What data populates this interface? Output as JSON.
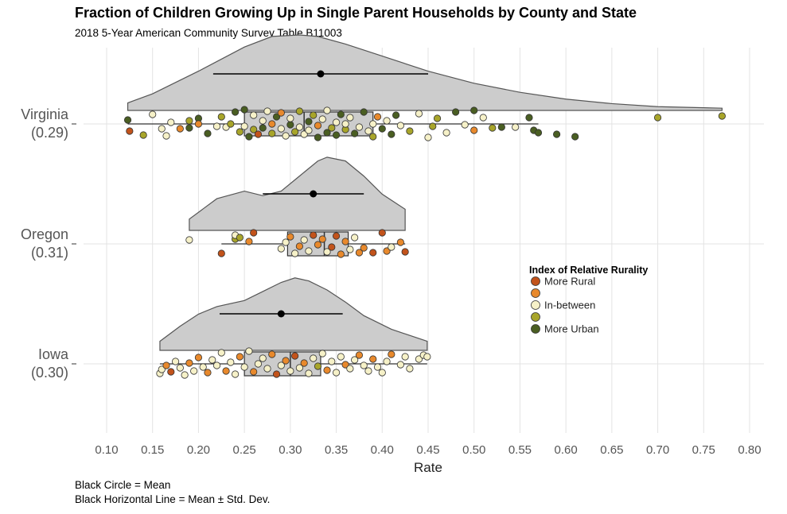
{
  "title": "Fraction of Children Growing Up in Single Parent Households by County and State",
  "subtitle": "2018 5-Year American Community Survey Table B11003",
  "caption": [
    "Black Circle = Mean",
    "Black Horizontal Line = Mean ± Std. Dev."
  ],
  "colors": {
    "more_rural": "#c2531b",
    "rural_mid": "#e8892c",
    "in_between": "#f6f1c8",
    "urban_mid": "#a8a52a",
    "more_urban": "#4a5e22",
    "density_fill": "#cccccc",
    "density_stroke": "#555555",
    "grid": "#e3e3e3"
  },
  "chart_data": {
    "type": "raincloud",
    "title": "Fraction of Children Growing Up in Single Parent Households by County and State",
    "subtitle": "2018 5-Year American Community Survey Table B11003",
    "xlabel": "Rate",
    "ylabel": "",
    "xlim": [
      0.1,
      0.8
    ],
    "xticks": [
      "0.10",
      "0.15",
      "0.20",
      "0.25",
      "0.30",
      "0.35",
      "0.40",
      "0.45",
      "0.50",
      "0.55",
      "0.60",
      "0.65",
      "0.70",
      "0.75",
      "0.80"
    ],
    "grid": true,
    "legend": {
      "title": "Index of Relative Rurality",
      "position": "right",
      "entries": [
        "More Rural",
        "",
        "In-between",
        "",
        "More Urban"
      ]
    },
    "series": [
      {
        "name": "Virginia",
        "label": [
          "Virginia",
          "(0.29)"
        ],
        "mean": 0.333,
        "sd": 0.117,
        "box": {
          "min": 0.123,
          "q1": 0.25,
          "median": 0.315,
          "q3": 0.39,
          "max": 0.57
        },
        "density": [
          [
            0.123,
            0.1
          ],
          [
            0.15,
            0.22
          ],
          [
            0.2,
            0.52
          ],
          [
            0.25,
            0.84
          ],
          [
            0.28,
            0.98
          ],
          [
            0.31,
            1.0
          ],
          [
            0.33,
            0.98
          ],
          [
            0.36,
            0.88
          ],
          [
            0.4,
            0.72
          ],
          [
            0.45,
            0.52
          ],
          [
            0.5,
            0.36
          ],
          [
            0.55,
            0.24
          ],
          [
            0.6,
            0.15
          ],
          [
            0.65,
            0.09
          ],
          [
            0.7,
            0.05
          ],
          [
            0.77,
            0.03
          ]
        ],
        "points": [
          [
            0.125,
            0.45,
            0
          ],
          [
            0.123,
            -0.25,
            4
          ],
          [
            0.14,
            0.7,
            3
          ],
          [
            0.15,
            -0.6,
            2
          ],
          [
            0.16,
            0.3,
            2
          ],
          [
            0.165,
            0.75,
            2
          ],
          [
            0.17,
            -0.1,
            2
          ],
          [
            0.18,
            0.3,
            1
          ],
          [
            0.19,
            -0.2,
            3
          ],
          [
            0.19,
            0.25,
            4
          ],
          [
            0.2,
            -0.35,
            4
          ],
          [
            0.2,
            0.0,
            1
          ],
          [
            0.21,
            0.6,
            4
          ],
          [
            0.22,
            0.15,
            2
          ],
          [
            0.225,
            -0.45,
            3
          ],
          [
            0.23,
            0.2,
            2
          ],
          [
            0.235,
            0.0,
            3
          ],
          [
            0.24,
            -0.75,
            4
          ],
          [
            0.245,
            0.5,
            3
          ],
          [
            0.25,
            -0.9,
            4
          ],
          [
            0.25,
            0.15,
            2
          ],
          [
            0.255,
            0.8,
            4
          ],
          [
            0.26,
            -0.55,
            2
          ],
          [
            0.26,
            0.35,
            3
          ],
          [
            0.265,
            0.65,
            0
          ],
          [
            0.27,
            -0.2,
            2
          ],
          [
            0.27,
            0.25,
            4
          ],
          [
            0.275,
            -0.8,
            2
          ],
          [
            0.28,
            0.0,
            1
          ],
          [
            0.28,
            0.6,
            3
          ],
          [
            0.285,
            -0.45,
            4
          ],
          [
            0.29,
            0.3,
            2
          ],
          [
            0.29,
            -0.7,
            1
          ],
          [
            0.295,
            0.75,
            2
          ],
          [
            0.3,
            0.05,
            4
          ],
          [
            0.3,
            -0.35,
            2
          ],
          [
            0.305,
            0.5,
            3
          ],
          [
            0.31,
            -0.8,
            3
          ],
          [
            0.31,
            0.2,
            2
          ],
          [
            0.315,
            0.65,
            2
          ],
          [
            0.32,
            -0.15,
            4
          ],
          [
            0.32,
            0.4,
            2
          ],
          [
            0.325,
            -0.55,
            3
          ],
          [
            0.33,
            0.85,
            4
          ],
          [
            0.33,
            0.1,
            1
          ],
          [
            0.335,
            -0.3,
            2
          ],
          [
            0.34,
            0.55,
            4
          ],
          [
            0.34,
            -0.85,
            2
          ],
          [
            0.345,
            0.25,
            3
          ],
          [
            0.35,
            0.7,
            4
          ],
          [
            0.35,
            -0.1,
            2
          ],
          [
            0.355,
            -0.6,
            4
          ],
          [
            0.36,
            0.35,
            3
          ],
          [
            0.36,
            0.0,
            2
          ],
          [
            0.365,
            -0.4,
            2
          ],
          [
            0.37,
            0.6,
            4
          ],
          [
            0.375,
            0.2,
            2
          ],
          [
            0.38,
            -0.75,
            4
          ],
          [
            0.385,
            0.45,
            2
          ],
          [
            0.39,
            0.0,
            2
          ],
          [
            0.39,
            0.8,
            3
          ],
          [
            0.395,
            -0.45,
            1
          ],
          [
            0.4,
            0.3,
            4
          ],
          [
            0.405,
            -0.2,
            2
          ],
          [
            0.41,
            0.65,
            4
          ],
          [
            0.415,
            -0.55,
            4
          ],
          [
            0.42,
            0.1,
            2
          ],
          [
            0.43,
            0.45,
            3
          ],
          [
            0.44,
            -0.65,
            2
          ],
          [
            0.45,
            0.85,
            2
          ],
          [
            0.455,
            0.15,
            3
          ],
          [
            0.46,
            -0.35,
            3
          ],
          [
            0.47,
            0.55,
            2
          ],
          [
            0.48,
            -0.75,
            4
          ],
          [
            0.49,
            0.05,
            2
          ],
          [
            0.5,
            0.4,
            1
          ],
          [
            0.51,
            -0.4,
            2
          ],
          [
            0.52,
            0.25,
            3
          ],
          [
            0.53,
            0.2,
            4
          ],
          [
            0.545,
            0.2,
            2
          ],
          [
            0.56,
            -0.4,
            4
          ],
          [
            0.565,
            0.4,
            4
          ],
          [
            0.57,
            0.55,
            4
          ],
          [
            0.59,
            0.65,
            4
          ],
          [
            0.61,
            0.8,
            4
          ],
          [
            0.7,
            -0.4,
            3
          ],
          [
            0.77,
            -0.5,
            3
          ],
          [
            0.5,
            -0.85,
            4
          ]
        ]
      },
      {
        "name": "Oregon",
        "label": [
          "Oregon",
          "(0.31)"
        ],
        "mean": 0.325,
        "sd": 0.055,
        "box": {
          "min": 0.225,
          "q1": 0.297,
          "median": 0.337,
          "q3": 0.363,
          "max": 0.425
        },
        "density": [
          [
            0.19,
            0.15
          ],
          [
            0.22,
            0.42
          ],
          [
            0.25,
            0.52
          ],
          [
            0.27,
            0.46
          ],
          [
            0.29,
            0.52
          ],
          [
            0.31,
            0.72
          ],
          [
            0.33,
            0.92
          ],
          [
            0.34,
            0.97
          ],
          [
            0.36,
            0.92
          ],
          [
            0.38,
            0.72
          ],
          [
            0.4,
            0.48
          ],
          [
            0.425,
            0.28
          ]
        ],
        "points": [
          [
            0.19,
            -0.25,
            2
          ],
          [
            0.225,
            0.6,
            0
          ],
          [
            0.24,
            -0.3,
            3
          ],
          [
            0.24,
            -0.55,
            2
          ],
          [
            0.245,
            -0.4,
            3
          ],
          [
            0.255,
            -0.15,
            1
          ],
          [
            0.26,
            -0.7,
            0
          ],
          [
            0.29,
            0.3,
            2
          ],
          [
            0.295,
            -0.1,
            2
          ],
          [
            0.3,
            -0.45,
            1
          ],
          [
            0.305,
            0.6,
            2
          ],
          [
            0.31,
            0.15,
            1
          ],
          [
            0.315,
            -0.25,
            2
          ],
          [
            0.32,
            0.45,
            2
          ],
          [
            0.325,
            -0.55,
            0
          ],
          [
            0.33,
            0.05,
            1
          ],
          [
            0.335,
            -0.3,
            1
          ],
          [
            0.34,
            0.5,
            2
          ],
          [
            0.345,
            0.2,
            0
          ],
          [
            0.35,
            -0.5,
            0
          ],
          [
            0.355,
            0.65,
            1
          ],
          [
            0.36,
            -0.15,
            1
          ],
          [
            0.365,
            0.35,
            2
          ],
          [
            0.37,
            -0.4,
            2
          ],
          [
            0.375,
            0.55,
            1
          ],
          [
            0.38,
            0.25,
            1
          ],
          [
            0.39,
            0.55,
            0
          ],
          [
            0.4,
            -0.7,
            0
          ],
          [
            0.405,
            0.45,
            1
          ],
          [
            0.41,
            0.2,
            2
          ],
          [
            0.42,
            -0.1,
            1
          ],
          [
            0.425,
            0.5,
            0
          ]
        ]
      },
      {
        "name": "Iowa",
        "label": [
          "Iowa",
          "(0.30)"
        ],
        "mean": 0.29,
        "sd": 0.067,
        "box": {
          "min": 0.158,
          "q1": 0.25,
          "median": 0.3,
          "q3": 0.333,
          "max": 0.449
        },
        "density": [
          [
            0.158,
            0.12
          ],
          [
            0.18,
            0.32
          ],
          [
            0.2,
            0.48
          ],
          [
            0.22,
            0.58
          ],
          [
            0.25,
            0.66
          ],
          [
            0.27,
            0.78
          ],
          [
            0.29,
            0.9
          ],
          [
            0.305,
            0.96
          ],
          [
            0.32,
            0.92
          ],
          [
            0.34,
            0.8
          ],
          [
            0.36,
            0.64
          ],
          [
            0.38,
            0.46
          ],
          [
            0.41,
            0.28
          ],
          [
            0.449,
            0.12
          ]
        ],
        "points": [
          [
            0.158,
            0.6,
            2
          ],
          [
            0.16,
            0.35,
            2
          ],
          [
            0.165,
            0.1,
            1
          ],
          [
            0.17,
            0.5,
            0
          ],
          [
            0.175,
            -0.15,
            2
          ],
          [
            0.18,
            0.25,
            2
          ],
          [
            0.185,
            0.7,
            2
          ],
          [
            0.19,
            -0.05,
            1
          ],
          [
            0.195,
            0.45,
            2
          ],
          [
            0.2,
            -0.4,
            1
          ],
          [
            0.205,
            0.2,
            2
          ],
          [
            0.21,
            0.55,
            1
          ],
          [
            0.215,
            -0.25,
            2
          ],
          [
            0.22,
            0.1,
            2
          ],
          [
            0.225,
            -0.7,
            2
          ],
          [
            0.23,
            0.45,
            1
          ],
          [
            0.235,
            -0.1,
            2
          ],
          [
            0.24,
            0.65,
            2
          ],
          [
            0.245,
            -0.45,
            1
          ],
          [
            0.25,
            0.2,
            2
          ],
          [
            0.255,
            -0.8,
            2
          ],
          [
            0.26,
            0.5,
            1
          ],
          [
            0.265,
            0.0,
            2
          ],
          [
            0.27,
            -0.35,
            2
          ],
          [
            0.275,
            0.3,
            2
          ],
          [
            0.28,
            -0.6,
            1
          ],
          [
            0.285,
            0.65,
            0
          ],
          [
            0.29,
            0.1,
            2
          ],
          [
            0.295,
            -0.2,
            1
          ],
          [
            0.3,
            0.45,
            2
          ],
          [
            0.305,
            -0.5,
            0
          ],
          [
            0.31,
            0.25,
            2
          ],
          [
            0.315,
            -0.05,
            1
          ],
          [
            0.32,
            0.6,
            2
          ],
          [
            0.325,
            -0.35,
            2
          ],
          [
            0.33,
            0.15,
            3
          ],
          [
            0.335,
            -0.65,
            2
          ],
          [
            0.34,
            0.4,
            1
          ],
          [
            0.345,
            -0.15,
            2
          ],
          [
            0.35,
            0.55,
            2
          ],
          [
            0.355,
            -0.45,
            2
          ],
          [
            0.36,
            0.05,
            1
          ],
          [
            0.365,
            0.3,
            2
          ],
          [
            0.37,
            -0.25,
            2
          ],
          [
            0.375,
            -0.55,
            1
          ],
          [
            0.38,
            0.1,
            2
          ],
          [
            0.385,
            0.45,
            2
          ],
          [
            0.39,
            -0.3,
            1
          ],
          [
            0.395,
            0.2,
            2
          ],
          [
            0.4,
            0.55,
            2
          ],
          [
            0.405,
            -0.15,
            2
          ],
          [
            0.41,
            -0.6,
            1
          ],
          [
            0.42,
            0.05,
            2
          ],
          [
            0.425,
            -0.45,
            2
          ],
          [
            0.43,
            0.3,
            2
          ],
          [
            0.44,
            -0.3,
            2
          ],
          [
            0.445,
            -0.55,
            2
          ],
          [
            0.449,
            -0.45,
            2
          ]
        ]
      }
    ]
  }
}
